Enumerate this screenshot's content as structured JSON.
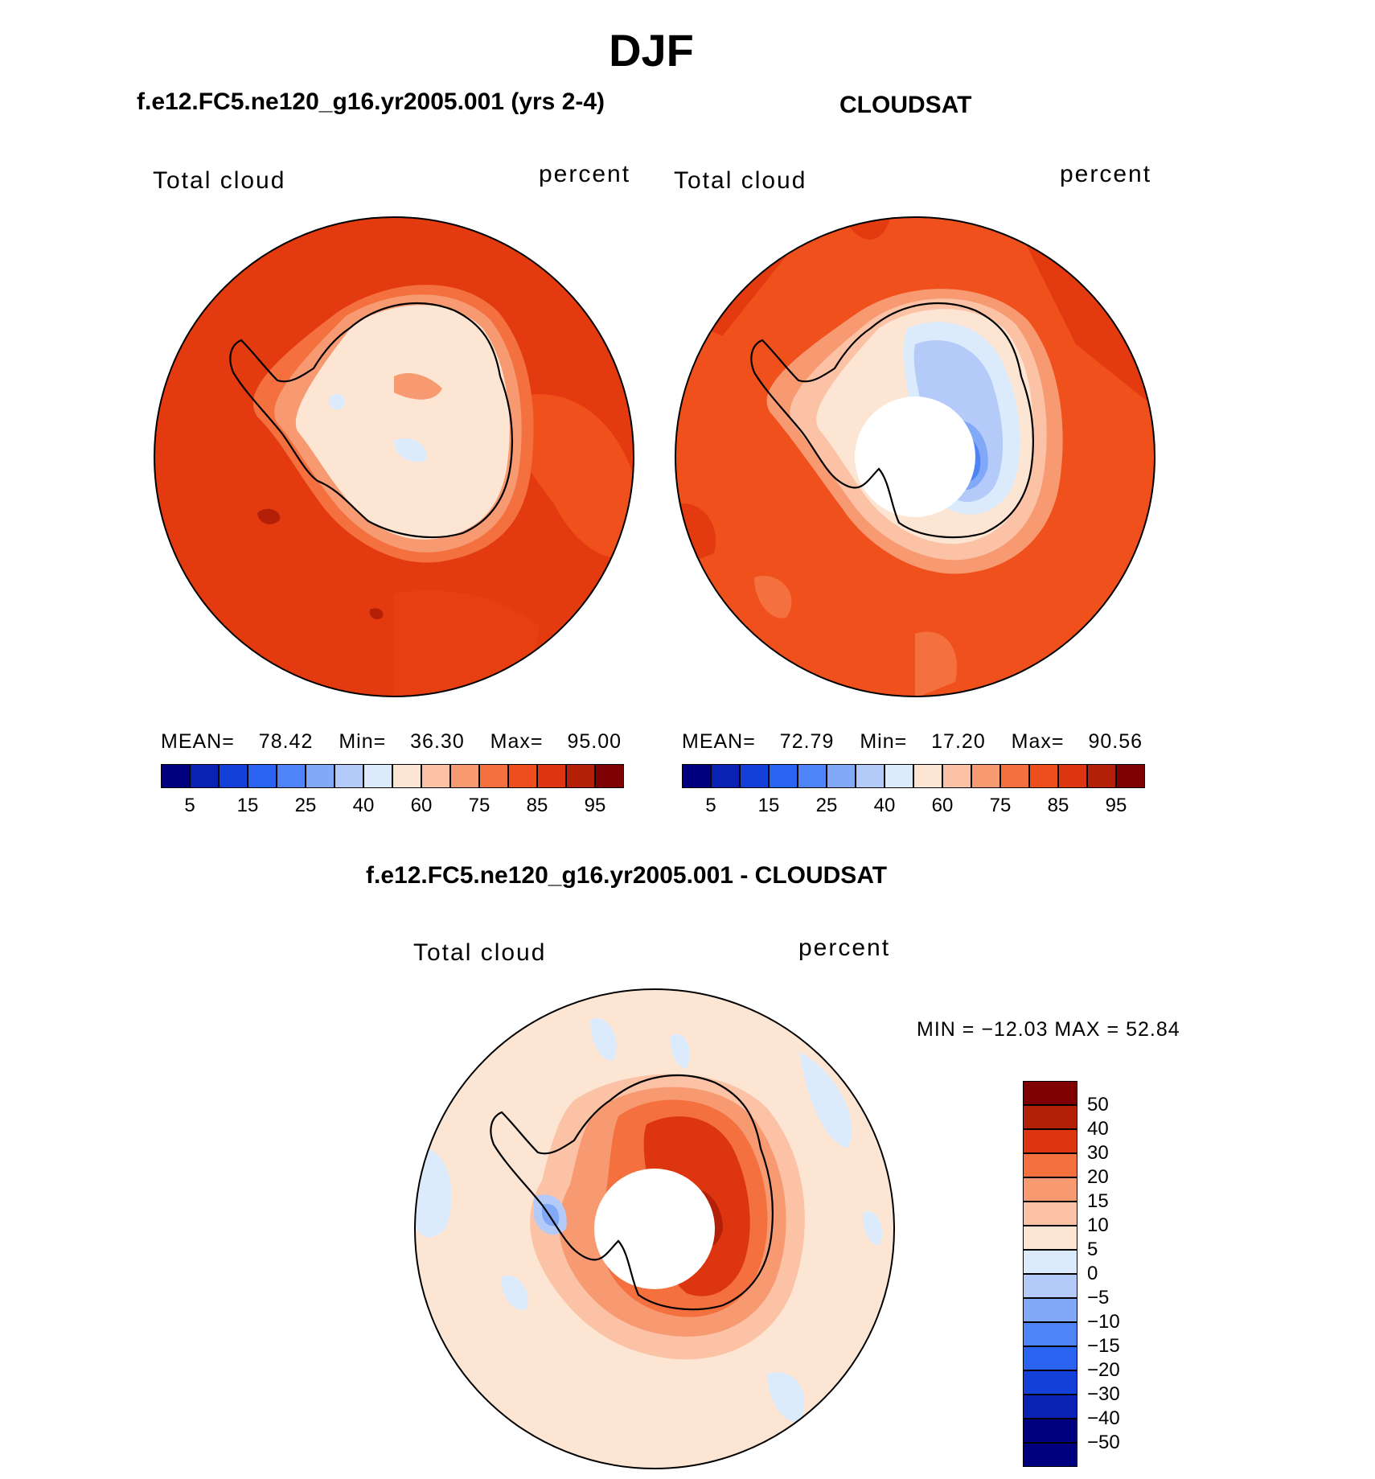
{
  "figure_title": "DJF",
  "panels": [
    {
      "id": "model",
      "title": "f.e12.FC5.ne120_g16.yr2005.001 (yrs 2-4)",
      "variable": "Total cloud",
      "units": "percent",
      "stats": {
        "mean_label": "MEAN=",
        "mean": "78.42",
        "min_label": "Min=",
        "min": "36.30",
        "max_label": "Max=",
        "max": "95.00"
      }
    },
    {
      "id": "obs",
      "title": "CLOUDSAT",
      "variable": "Total cloud",
      "units": "percent",
      "stats": {
        "mean_label": "MEAN=",
        "mean": "72.79",
        "min_label": "Min=",
        "min": "17.20",
        "max_label": "Max=",
        "max": "90.56"
      }
    },
    {
      "id": "diff",
      "title": "f.e12.FC5.ne120_g16.yr2005.001 - CLOUDSAT",
      "variable": "Total cloud",
      "units": "percent",
      "minmax": "MIN = −12.03 MAX =   52.84"
    }
  ],
  "colorbar_main": {
    "colors": [
      "#00007f",
      "#0a22b3",
      "#1340d8",
      "#2a63f0",
      "#4e84f5",
      "#82a9f8",
      "#b4cbfa",
      "#dcebfc",
      "#fde5d4",
      "#fbc2a5",
      "#f79a72",
      "#f4703f",
      "#ee4e1d",
      "#dc3510",
      "#b41f08",
      "#7f0000"
    ],
    "tick_labels": [
      "5",
      "15",
      "25",
      "40",
      "60",
      "75",
      "85",
      "95"
    ]
  },
  "colorbar_diff": {
    "colors": [
      "#7f0000",
      "#b41f08",
      "#dc3510",
      "#f4703f",
      "#f79a72",
      "#fbc2a5",
      "#fde5d4",
      "#dcebfc",
      "#b4cbfa",
      "#82a9f8",
      "#4e84f5",
      "#2a63f0",
      "#1340d8",
      "#0a22b3",
      "#00007f"
    ],
    "tick_labels": [
      "50",
      "40",
      "30",
      "20",
      "15",
      "10",
      "5",
      "0",
      "−5",
      "−10",
      "−15",
      "−20",
      "−30",
      "−40",
      "−50"
    ]
  },
  "colors": {
    "ocean_model": "#e33a10",
    "ocean_obs": "#f0501c",
    "ice_light": "#fde5d4",
    "diff_background": "#fde5d4",
    "missing": "#ffffff"
  }
}
